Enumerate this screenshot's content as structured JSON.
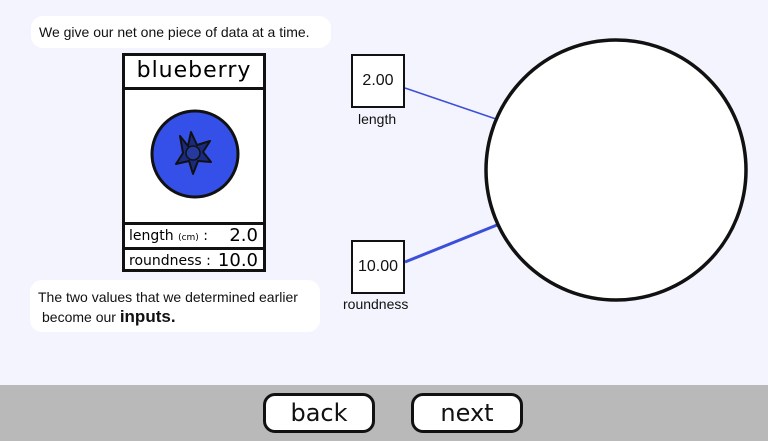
{
  "intro_text": "We give our net one piece of data at a time.",
  "card": {
    "title": "blueberry",
    "length_label": "length",
    "length_unit": "(cm)",
    "length_colon": ":",
    "length_value": "2.0",
    "roundness_label": "roundness :",
    "roundness_value": "10.0",
    "fruit_color": "#3550e8"
  },
  "inputs_text": {
    "line1": "The two values that we determined earlier",
    "line2_prefix": "become our",
    "line2_strong": "inputs."
  },
  "inputs": [
    {
      "value": "2.00",
      "label": "length"
    },
    {
      "value": "10.00",
      "label": "roundness"
    }
  ],
  "colors": {
    "background": "#f4f4fe",
    "wire": "#3b4fd8",
    "footer": "#b9b9b9"
  },
  "nav": {
    "back_label": "back",
    "next_label": "next"
  }
}
